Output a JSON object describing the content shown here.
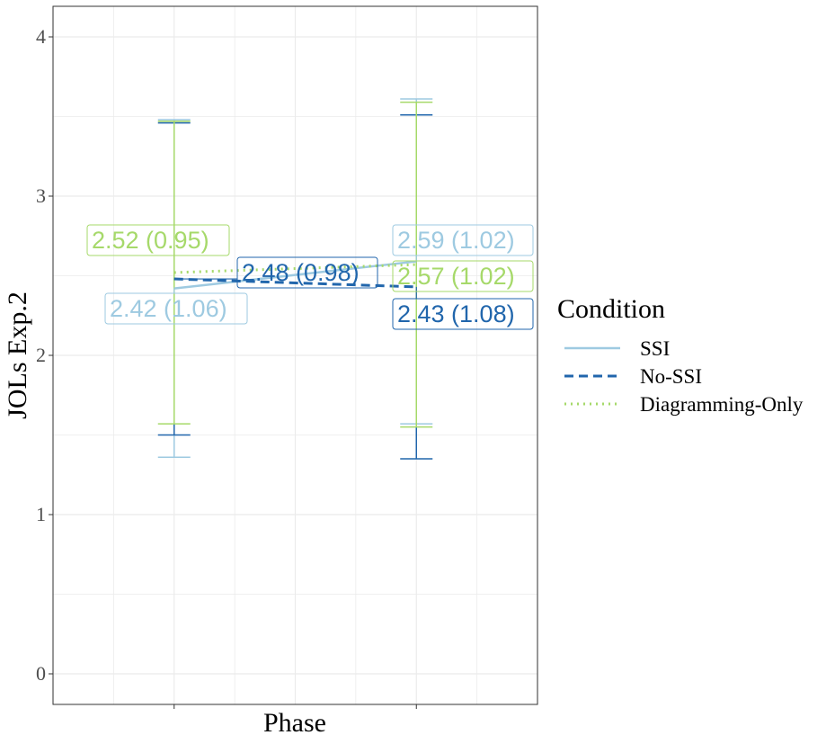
{
  "chart_data": {
    "type": "line",
    "xlabel": "Phase",
    "ylabel": "JOLs Exp.2",
    "ylim": [
      -0.2,
      4.2
    ],
    "yticks": [
      "0",
      "1",
      "2",
      "3",
      "4"
    ],
    "grid": true,
    "legend_title": "Condition",
    "legend_position": "right",
    "x": [
      1,
      2
    ],
    "series": [
      {
        "name": "SSI",
        "color": "#9ecae1",
        "dash": "solid",
        "values": [
          2.42,
          2.59
        ],
        "error_low": [
          1.36,
          1.57
        ],
        "error_high": [
          3.48,
          3.61
        ],
        "labels": [
          "2.42 (1.06)",
          "2.59 (1.02)"
        ]
      },
      {
        "name": "No-SSI",
        "color": "#2166ac",
        "dash": "dashed",
        "values": [
          2.48,
          2.43
        ],
        "error_low": [
          1.5,
          1.35
        ],
        "error_high": [
          3.46,
          3.51
        ],
        "labels": [
          "2.48 (0.98)",
          "2.43 (1.08)"
        ]
      },
      {
        "name": "Diagramming-Only",
        "color": "#a6d96a",
        "dash": "dotted",
        "values": [
          2.52,
          2.57
        ],
        "error_low": [
          1.57,
          1.55
        ],
        "error_high": [
          3.47,
          3.59
        ],
        "labels": [
          "2.52 (0.95)",
          "2.57 (1.02)"
        ]
      }
    ]
  }
}
